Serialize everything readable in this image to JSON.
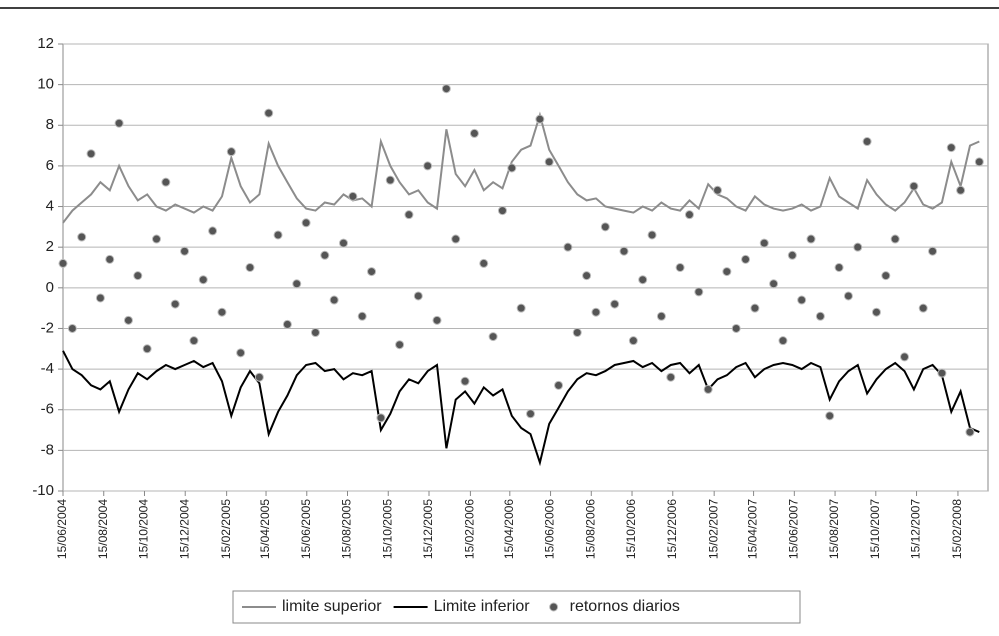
{
  "chart_data": {
    "type": "line",
    "xlim": [
      "15/06/2004",
      "31/03/2008"
    ],
    "xticks": [
      "15/06/2004",
      "15/08/2004",
      "15/10/2004",
      "15/12/2004",
      "15/02/2005",
      "15/04/2005",
      "15/06/2005",
      "15/08/2005",
      "15/10/2005",
      "15/12/2005",
      "15/02/2006",
      "15/04/2006",
      "15/06/2006",
      "15/08/2006",
      "15/10/2006",
      "15/12/2006",
      "15/02/2007",
      "15/04/2007",
      "15/06/2007",
      "15/08/2007",
      "15/10/2007",
      "15/12/2007",
      "15/02/2008"
    ],
    "ylim": [
      -10,
      12
    ],
    "yticks": [
      -10,
      -8,
      -6,
      -4,
      -2,
      0,
      2,
      4,
      6,
      8,
      10,
      12
    ],
    "grid": true,
    "x": [
      "15/06/2004",
      "29/06/2004",
      "13/07/2004",
      "27/07/2004",
      "10/08/2004",
      "24/08/2004",
      "07/09/2004",
      "21/09/2004",
      "05/10/2004",
      "19/10/2004",
      "02/11/2004",
      "16/11/2004",
      "30/11/2004",
      "14/12/2004",
      "28/12/2004",
      "11/01/2005",
      "25/01/2005",
      "08/02/2005",
      "22/02/2005",
      "08/03/2005",
      "22/03/2005",
      "05/04/2005",
      "19/04/2005",
      "03/05/2005",
      "17/05/2005",
      "31/05/2005",
      "14/06/2005",
      "28/06/2005",
      "12/07/2005",
      "26/07/2005",
      "09/08/2005",
      "23/08/2005",
      "06/09/2005",
      "20/09/2005",
      "04/10/2005",
      "18/10/2005",
      "01/11/2005",
      "15/11/2005",
      "29/11/2005",
      "13/12/2005",
      "27/12/2005",
      "10/01/2006",
      "24/01/2006",
      "07/02/2006",
      "21/02/2006",
      "07/03/2006",
      "21/03/2006",
      "04/04/2006",
      "18/04/2006",
      "02/05/2006",
      "16/05/2006",
      "30/05/2006",
      "13/06/2006",
      "27/06/2006",
      "11/07/2006",
      "25/07/2006",
      "08/08/2006",
      "22/08/2006",
      "05/09/2006",
      "19/09/2006",
      "03/10/2006",
      "17/10/2006",
      "31/10/2006",
      "14/11/2006",
      "28/11/2006",
      "12/12/2006",
      "26/12/2006",
      "09/01/2007",
      "23/01/2007",
      "06/02/2007",
      "20/02/2007",
      "06/03/2007",
      "20/03/2007",
      "03/04/2007",
      "17/04/2007",
      "01/05/2007",
      "15/05/2007",
      "29/05/2007",
      "12/06/2007",
      "26/06/2007",
      "10/07/2007",
      "24/07/2007",
      "07/08/2007",
      "21/08/2007",
      "04/09/2007",
      "18/09/2007",
      "02/10/2007",
      "16/10/2007",
      "30/10/2007",
      "13/11/2007",
      "27/11/2007",
      "11/12/2007",
      "25/12/2007",
      "08/01/2008",
      "22/01/2008",
      "05/02/2008",
      "19/02/2008",
      "04/03/2008",
      "18/03/2008"
    ],
    "series": [
      {
        "name": "limite superior",
        "color": "#8c8c8c",
        "values": [
          3.2,
          3.8,
          4.2,
          4.6,
          5.2,
          4.8,
          6.0,
          5.0,
          4.3,
          4.6,
          4.0,
          3.8,
          4.1,
          3.9,
          3.7,
          4.0,
          3.8,
          4.5,
          6.4,
          5.0,
          4.2,
          4.6,
          7.1,
          6.0,
          5.2,
          4.4,
          3.9,
          3.8,
          4.2,
          4.1,
          4.6,
          4.3,
          4.4,
          4.0,
          7.2,
          6.0,
          5.2,
          4.6,
          4.8,
          4.2,
          3.9,
          7.8,
          5.6,
          5.0,
          5.8,
          4.8,
          5.2,
          4.9,
          6.2,
          6.8,
          7.0,
          8.5,
          6.8,
          6.0,
          5.2,
          4.6,
          4.3,
          4.4,
          4.0,
          3.9,
          3.8,
          3.7,
          4.0,
          3.8,
          4.2,
          3.9,
          3.8,
          4.3,
          3.9,
          5.1,
          4.6,
          4.4,
          4.0,
          3.8,
          4.5,
          4.1,
          3.9,
          3.8,
          3.9,
          4.1,
          3.8,
          4.0,
          5.4,
          4.5,
          4.2,
          3.9,
          5.3,
          4.6,
          4.1,
          3.8,
          4.2,
          4.9,
          4.1,
          3.9,
          4.2,
          6.2,
          5.0,
          7.0,
          7.2
        ]
      },
      {
        "name": "Limite inferior",
        "color": "#000000",
        "values": [
          -3.1,
          -4.0,
          -4.3,
          -4.8,
          -5.0,
          -4.6,
          -6.1,
          -5.0,
          -4.2,
          -4.5,
          -4.1,
          -3.8,
          -4.0,
          -3.8,
          -3.6,
          -3.9,
          -3.7,
          -4.6,
          -6.3,
          -4.9,
          -4.1,
          -4.7,
          -7.2,
          -6.1,
          -5.3,
          -4.3,
          -3.8,
          -3.7,
          -4.1,
          -4.0,
          -4.5,
          -4.2,
          -4.3,
          -4.1,
          -7.0,
          -6.2,
          -5.1,
          -4.5,
          -4.7,
          -4.1,
          -3.8,
          -7.9,
          -5.5,
          -5.1,
          -5.7,
          -4.9,
          -5.3,
          -5.0,
          -6.3,
          -6.9,
          -7.2,
          -8.6,
          -6.7,
          -5.9,
          -5.1,
          -4.5,
          -4.2,
          -4.3,
          -4.1,
          -3.8,
          -3.7,
          -3.6,
          -3.9,
          -3.7,
          -4.1,
          -3.8,
          -3.7,
          -4.2,
          -3.8,
          -5.0,
          -4.5,
          -4.3,
          -3.9,
          -3.7,
          -4.4,
          -4.0,
          -3.8,
          -3.7,
          -3.8,
          -4.0,
          -3.7,
          -3.9,
          -5.5,
          -4.6,
          -4.1,
          -3.8,
          -5.2,
          -4.5,
          -4.0,
          -3.7,
          -4.1,
          -5.0,
          -4.0,
          -3.8,
          -4.3,
          -6.1,
          -5.1,
          -6.9,
          -7.1
        ]
      },
      {
        "name": "retornos diarios",
        "color": "#555555",
        "type": "scatter",
        "values": [
          1.2,
          -2.0,
          2.5,
          6.6,
          -0.5,
          1.4,
          8.1,
          -1.6,
          0.6,
          -3.0,
          2.4,
          5.2,
          -0.8,
          1.8,
          -2.6,
          0.4,
          2.8,
          -1.2,
          6.7,
          -3.2,
          1.0,
          -4.4,
          8.6,
          2.6,
          -1.8,
          0.2,
          3.2,
          -2.2,
          1.6,
          -0.6,
          2.2,
          4.5,
          -1.4,
          0.8,
          -6.4,
          5.3,
          -2.8,
          3.6,
          -0.4,
          6.0,
          -1.6,
          9.8,
          2.4,
          -4.6,
          7.6,
          1.2,
          -2.4,
          3.8,
          5.9,
          -1.0,
          -6.2,
          8.3,
          6.2,
          -4.8,
          2.0,
          -2.2,
          0.6,
          -1.2,
          3.0,
          -0.8,
          1.8,
          -2.6,
          0.4,
          2.6,
          -1.4,
          -4.4,
          1.0,
          3.6,
          -0.2,
          -5.0,
          4.8,
          0.8,
          -2.0,
          1.4,
          -1.0,
          2.2,
          0.2,
          -2.6,
          1.6,
          -0.6,
          2.4,
          -1.4,
          -6.3,
          1.0,
          -0.4,
          2.0,
          7.2,
          -1.2,
          0.6,
          2.4,
          -3.4,
          5.0,
          -1.0,
          1.8,
          -4.2,
          6.9,
          4.8,
          -7.1,
          6.2
        ]
      }
    ]
  }
}
